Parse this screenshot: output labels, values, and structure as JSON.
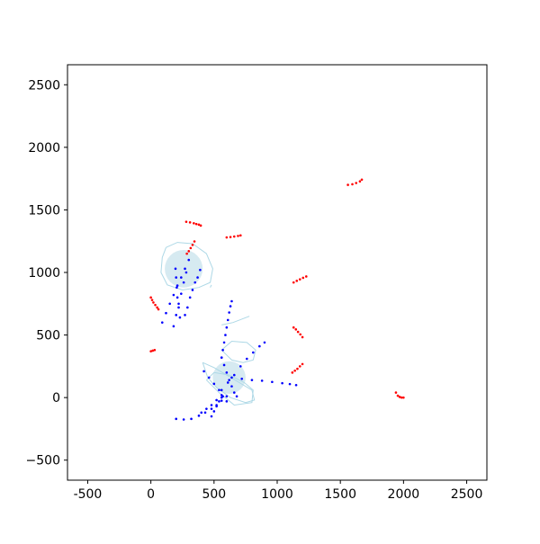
{
  "chart_data": {
    "type": "scatter",
    "title": "",
    "xlabel": "",
    "ylabel": "",
    "xlim": [
      -660,
      2660
    ],
    "ylim": [
      -660,
      2660
    ],
    "xticks": [
      -500,
      0,
      500,
      1000,
      1500,
      2000,
      2500
    ],
    "yticks": [
      -500,
      0,
      500,
      1000,
      1500,
      2000,
      2500
    ],
    "xtick_labels": [
      "-500",
      "0",
      "500",
      "1000",
      "1500",
      "2000",
      "2500"
    ],
    "ytick_labels": [
      "−500",
      "0",
      "500",
      "1000",
      "1500",
      "2000",
      "2500"
    ],
    "grid": false,
    "colors": {
      "red": "#ff0000",
      "blue": "#0000ff",
      "light": "#add8e6",
      "light_fill": "#cfe6ef"
    },
    "shaded_regions": [
      {
        "center": [
          260,
          1030
        ],
        "radius": 150
      },
      {
        "center": [
          620,
          160
        ],
        "radius": 130
      }
    ],
    "outlines": [
      {
        "points": [
          [
            120,
            1200
          ],
          [
            210,
            1240
          ],
          [
            330,
            1230
          ],
          [
            440,
            1150
          ],
          [
            490,
            1030
          ],
          [
            470,
            920
          ],
          [
            380,
            880
          ],
          [
            250,
            860
          ],
          [
            130,
            900
          ],
          [
            80,
            1000
          ],
          [
            90,
            1120
          ],
          [
            120,
            1200
          ]
        ]
      },
      {
        "points": [
          [
            410,
            280
          ],
          [
            450,
            160
          ],
          [
            520,
            80
          ],
          [
            630,
            0
          ],
          [
            750,
            -40
          ],
          [
            820,
            -20
          ],
          [
            800,
            60
          ],
          [
            700,
            120
          ],
          [
            600,
            180
          ],
          [
            500,
            240
          ],
          [
            410,
            280
          ]
        ]
      },
      {
        "points": [
          [
            560,
            380
          ],
          [
            640,
            450
          ],
          [
            760,
            440
          ],
          [
            830,
            380
          ],
          [
            810,
            300
          ],
          [
            730,
            280
          ],
          [
            640,
            300
          ],
          [
            560,
            380
          ]
        ]
      },
      {
        "points": [
          [
            440,
            140
          ],
          [
            540,
            40
          ],
          [
            660,
            -60
          ],
          [
            800,
            -40
          ],
          [
            810,
            60
          ],
          [
            740,
            120
          ],
          [
            620,
            180
          ],
          [
            500,
            200
          ],
          [
            440,
            140
          ]
        ]
      },
      {
        "points": [
          [
            470,
            880
          ],
          [
            480,
            900
          ]
        ]
      },
      {
        "points": [
          [
            560,
            580
          ],
          [
            650,
            600
          ],
          [
            780,
            650
          ]
        ]
      }
    ],
    "series": [
      {
        "color": "red",
        "segments": [
          {
            "x": [
              1560,
              1595,
              1625,
              1655,
              1670
            ],
            "y": [
              1700,
              1705,
              1715,
              1728,
              1742
            ]
          },
          {
            "x": [
              280,
              310,
              340,
              360,
              380,
              395
            ],
            "y": [
              1405,
              1400,
              1393,
              1387,
              1382,
              1375
            ]
          },
          {
            "x": [
              600,
              630,
              660,
              690,
              710
            ],
            "y": [
              1280,
              1283,
              1287,
              1292,
              1296
            ]
          },
          {
            "x": [
              285,
              300,
              315,
              330,
              345
            ],
            "y": [
              1150,
              1170,
              1195,
              1220,
              1248
            ]
          },
          {
            "x": [
              1130,
              1155,
              1180,
              1205,
              1230
            ],
            "y": [
              920,
              933,
              945,
              957,
              968
            ]
          },
          {
            "x": [
              0,
              10,
              20,
              35,
              50,
              60
            ],
            "y": [
              800,
              780,
              760,
              740,
              720,
              705
            ]
          },
          {
            "x": [
              1130,
              1148,
              1165,
              1183,
              1200
            ],
            "y": [
              560,
              545,
              525,
              505,
              483
            ]
          },
          {
            "x": [
              1120,
              1140,
              1160,
              1180,
              1200
            ],
            "y": [
              200,
              215,
              230,
              250,
              268
            ]
          },
          {
            "x": [
              0,
              15,
              30
            ],
            "y": [
              370,
              375,
              380
            ]
          },
          {
            "x": [
              1940,
              1955,
              1970,
              1985,
              2000
            ],
            "y": [
              40,
              15,
              5,
              0,
              0
            ]
          }
        ]
      },
      {
        "color": "blue",
        "segments": [
          {
            "x": [
              90,
              120,
              150,
              180,
              210,
              240,
              270,
              300
            ],
            "y": [
              600,
              675,
              750,
              820,
              895,
              960,
              1030,
              1100
            ]
          },
          {
            "x": [
              180,
              200,
              220,
              240,
              260,
              280
            ],
            "y": [
              570,
              660,
              750,
              830,
              920,
              1000
            ]
          },
          {
            "x": [
              230,
              220,
              210,
              205,
              200,
              195
            ],
            "y": [
              640,
              720,
              800,
              880,
              960,
              1030
            ]
          },
          {
            "x": [
              270,
              290,
              310,
              330,
              350,
              370,
              390
            ],
            "y": [
              660,
              720,
              800,
              860,
              920,
              960,
              1020
            ]
          },
          {
            "x": [
              200,
              260,
              320,
              380,
              430,
              480,
              520,
              560,
              600
            ],
            "y": [
              -170,
              -175,
              -170,
              -145,
              -120,
              -90,
              -60,
              -25,
              10
            ]
          },
          {
            "x": [
              560,
              610,
              660,
              710,
              760,
              810,
              860,
              900
            ],
            "y": [
              60,
              120,
              180,
              250,
              310,
              360,
              410,
              440
            ]
          },
          {
            "x": [
              420,
              460,
              500,
              540,
              570,
              600
            ],
            "y": [
              210,
              160,
              110,
              60,
              10,
              -30
            ]
          },
          {
            "x": [
              560,
              570,
              580,
              590,
              600,
              610,
              620,
              630,
              640
            ],
            "y": [
              320,
              380,
              440,
              500,
              560,
              620,
              680,
              730,
              770
            ]
          },
          {
            "x": [
              640,
              720,
              800,
              880,
              960,
              1040,
              1100,
              1150
            ],
            "y": [
              160,
              150,
              140,
              135,
              125,
              115,
              108,
              100
            ]
          },
          {
            "x": [
              400,
              440,
              480,
              520,
              560
            ],
            "y": [
              -120,
              -90,
              -60,
              -20,
              20
            ]
          },
          {
            "x": [
              560,
              580,
              600,
              620,
              640,
              660,
              680
            ],
            "y": [
              320,
              260,
              200,
              140,
              90,
              40,
              10
            ]
          },
          {
            "x": [
              480,
              500,
              520,
              540,
              560
            ],
            "y": [
              -150,
              -110,
              -70,
              -30,
              0
            ]
          }
        ]
      }
    ]
  }
}
